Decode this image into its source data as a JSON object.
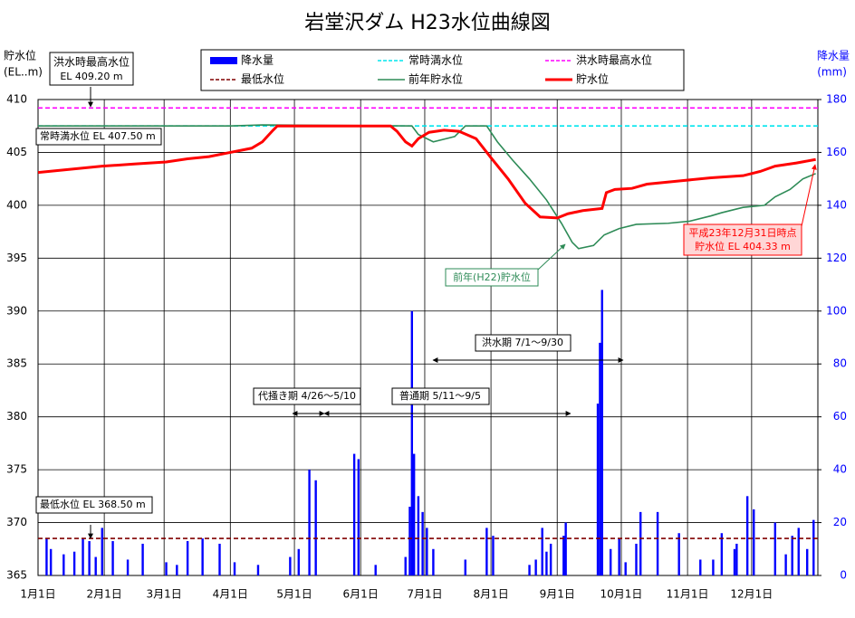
{
  "chart_data": {
    "type": "combo",
    "title": "岩堂沢ダム H23水位曲線図",
    "y_label": "貯水位",
    "y_unit": "(EL..m)",
    "y2_label": "降水量",
    "y2_unit": "(mm)",
    "xlim": [
      0,
      365
    ],
    "xticks": [
      {
        "value": 0,
        "label": "1月1日"
      },
      {
        "value": 31,
        "label": "2月1日"
      },
      {
        "value": 59,
        "label": "3月1日"
      },
      {
        "value": 90,
        "label": "4月1日"
      },
      {
        "value": 120,
        "label": "5月1日"
      },
      {
        "value": 151,
        "label": "6月1日"
      },
      {
        "value": 181,
        "label": "7月1日"
      },
      {
        "value": 212,
        "label": "8月1日"
      },
      {
        "value": 243,
        "label": "9月1日"
      },
      {
        "value": 273,
        "label": "10月1日"
      },
      {
        "value": 304,
        "label": "11月1日"
      },
      {
        "value": 334,
        "label": "12月1日"
      }
    ],
    "ylim": [
      365,
      410
    ],
    "yticks": [
      365,
      370,
      375,
      380,
      385,
      390,
      395,
      400,
      405,
      410
    ],
    "y2lim": [
      0,
      180
    ],
    "y2ticks": [
      0,
      20,
      40,
      60,
      80,
      100,
      120,
      140,
      160,
      180
    ],
    "grid": true,
    "series": [
      {
        "name": "降水量",
        "kind": "bar",
        "axis": "y2",
        "color": "#0000ff",
        "x": [
          4,
          6,
          12,
          17,
          21,
          24,
          27,
          30,
          35,
          42,
          49,
          60,
          65,
          70,
          77,
          85,
          92,
          103,
          118,
          122,
          127,
          130,
          148,
          150,
          158,
          172,
          174,
          175,
          176,
          178,
          180,
          182,
          185,
          200,
          210,
          213,
          230,
          233,
          236,
          238,
          240,
          246,
          247,
          262,
          263,
          264,
          268,
          272,
          275,
          280,
          282,
          290,
          300,
          310,
          316,
          320,
          326,
          327,
          332,
          335,
          345,
          350,
          353,
          356,
          360,
          363
        ],
        "values": [
          14,
          10,
          8,
          9,
          14,
          13,
          7,
          18,
          13,
          6,
          12,
          5,
          4,
          13,
          14,
          12,
          5,
          4,
          7,
          10,
          40,
          36,
          46,
          44,
          4,
          7,
          26,
          100,
          46,
          30,
          24,
          18,
          10,
          6,
          18,
          15,
          4,
          6,
          18,
          9,
          12,
          15,
          20,
          65,
          88,
          108,
          10,
          14,
          5,
          12,
          24,
          24,
          16,
          6,
          6,
          16,
          10,
          12,
          30,
          25,
          20,
          8,
          15,
          18,
          10,
          21
        ]
      },
      {
        "name": "常時満水位",
        "kind": "hline",
        "color": "#00e5ee",
        "value": 407.5
      },
      {
        "name": "洪水時最高水位",
        "kind": "hline",
        "color": "#ff00ff",
        "value": 409.2
      },
      {
        "name": "最低水位",
        "kind": "hline",
        "color": "#800000",
        "value": 368.5
      },
      {
        "name": "前年貯水位",
        "kind": "line",
        "color": "#2e8b57",
        "x": [
          0,
          90,
          105,
          175,
          178,
          185,
          195,
          200,
          210,
          215,
          222,
          230,
          238,
          245,
          250,
          253,
          260,
          265,
          272,
          280,
          295,
          305,
          315,
          320,
          330,
          340,
          345,
          352,
          358,
          364
        ],
        "values": [
          407.5,
          407.5,
          407.6,
          407.5,
          406.7,
          406.0,
          406.5,
          407.5,
          407.5,
          406.0,
          404.3,
          402.5,
          400.5,
          398.3,
          396.5,
          395.9,
          396.2,
          397.2,
          397.8,
          398.2,
          398.3,
          398.5,
          399.0,
          399.3,
          399.8,
          400.0,
          400.8,
          401.5,
          402.5,
          403.0
        ]
      },
      {
        "name": "貯水位",
        "kind": "line",
        "color": "#ff0000",
        "x": [
          0,
          15,
          30,
          45,
          60,
          70,
          80,
          90,
          100,
          105,
          110,
          112,
          165,
          168,
          172,
          175,
          178,
          183,
          190,
          197,
          205,
          212,
          220,
          228,
          235,
          243,
          248,
          255,
          264,
          266,
          270,
          278,
          285,
          300,
          315,
          330,
          338,
          345,
          355,
          364
        ],
        "values": [
          403.1,
          403.4,
          403.7,
          403.9,
          404.1,
          404.4,
          404.6,
          405.0,
          405.4,
          406.0,
          407.1,
          407.5,
          407.5,
          407.0,
          406.0,
          405.6,
          406.3,
          406.9,
          407.1,
          407.0,
          406.3,
          404.5,
          402.5,
          400.2,
          398.9,
          398.8,
          399.2,
          399.5,
          399.7,
          401.2,
          401.5,
          401.6,
          402.0,
          402.3,
          402.6,
          402.8,
          403.2,
          403.7,
          404.0,
          404.33
        ]
      }
    ],
    "annotations": {
      "flood_max": [
        "洪水時最高水位",
        "EL 409.20 m"
      ],
      "normal_full": "常時満水位  EL 407.50 m",
      "min_level": "最低水位  EL 368.50 m",
      "year_end": [
        "平成23年12月31日時点",
        "貯水位 EL 404.33 m"
      ],
      "prev_year": "前年(H22)貯水位",
      "flood_period": "洪水期 7/1～9/30",
      "puddling_period": "代掻き期 4/26～5/10",
      "normal_period": "普通期 5/11～9/5"
    }
  }
}
